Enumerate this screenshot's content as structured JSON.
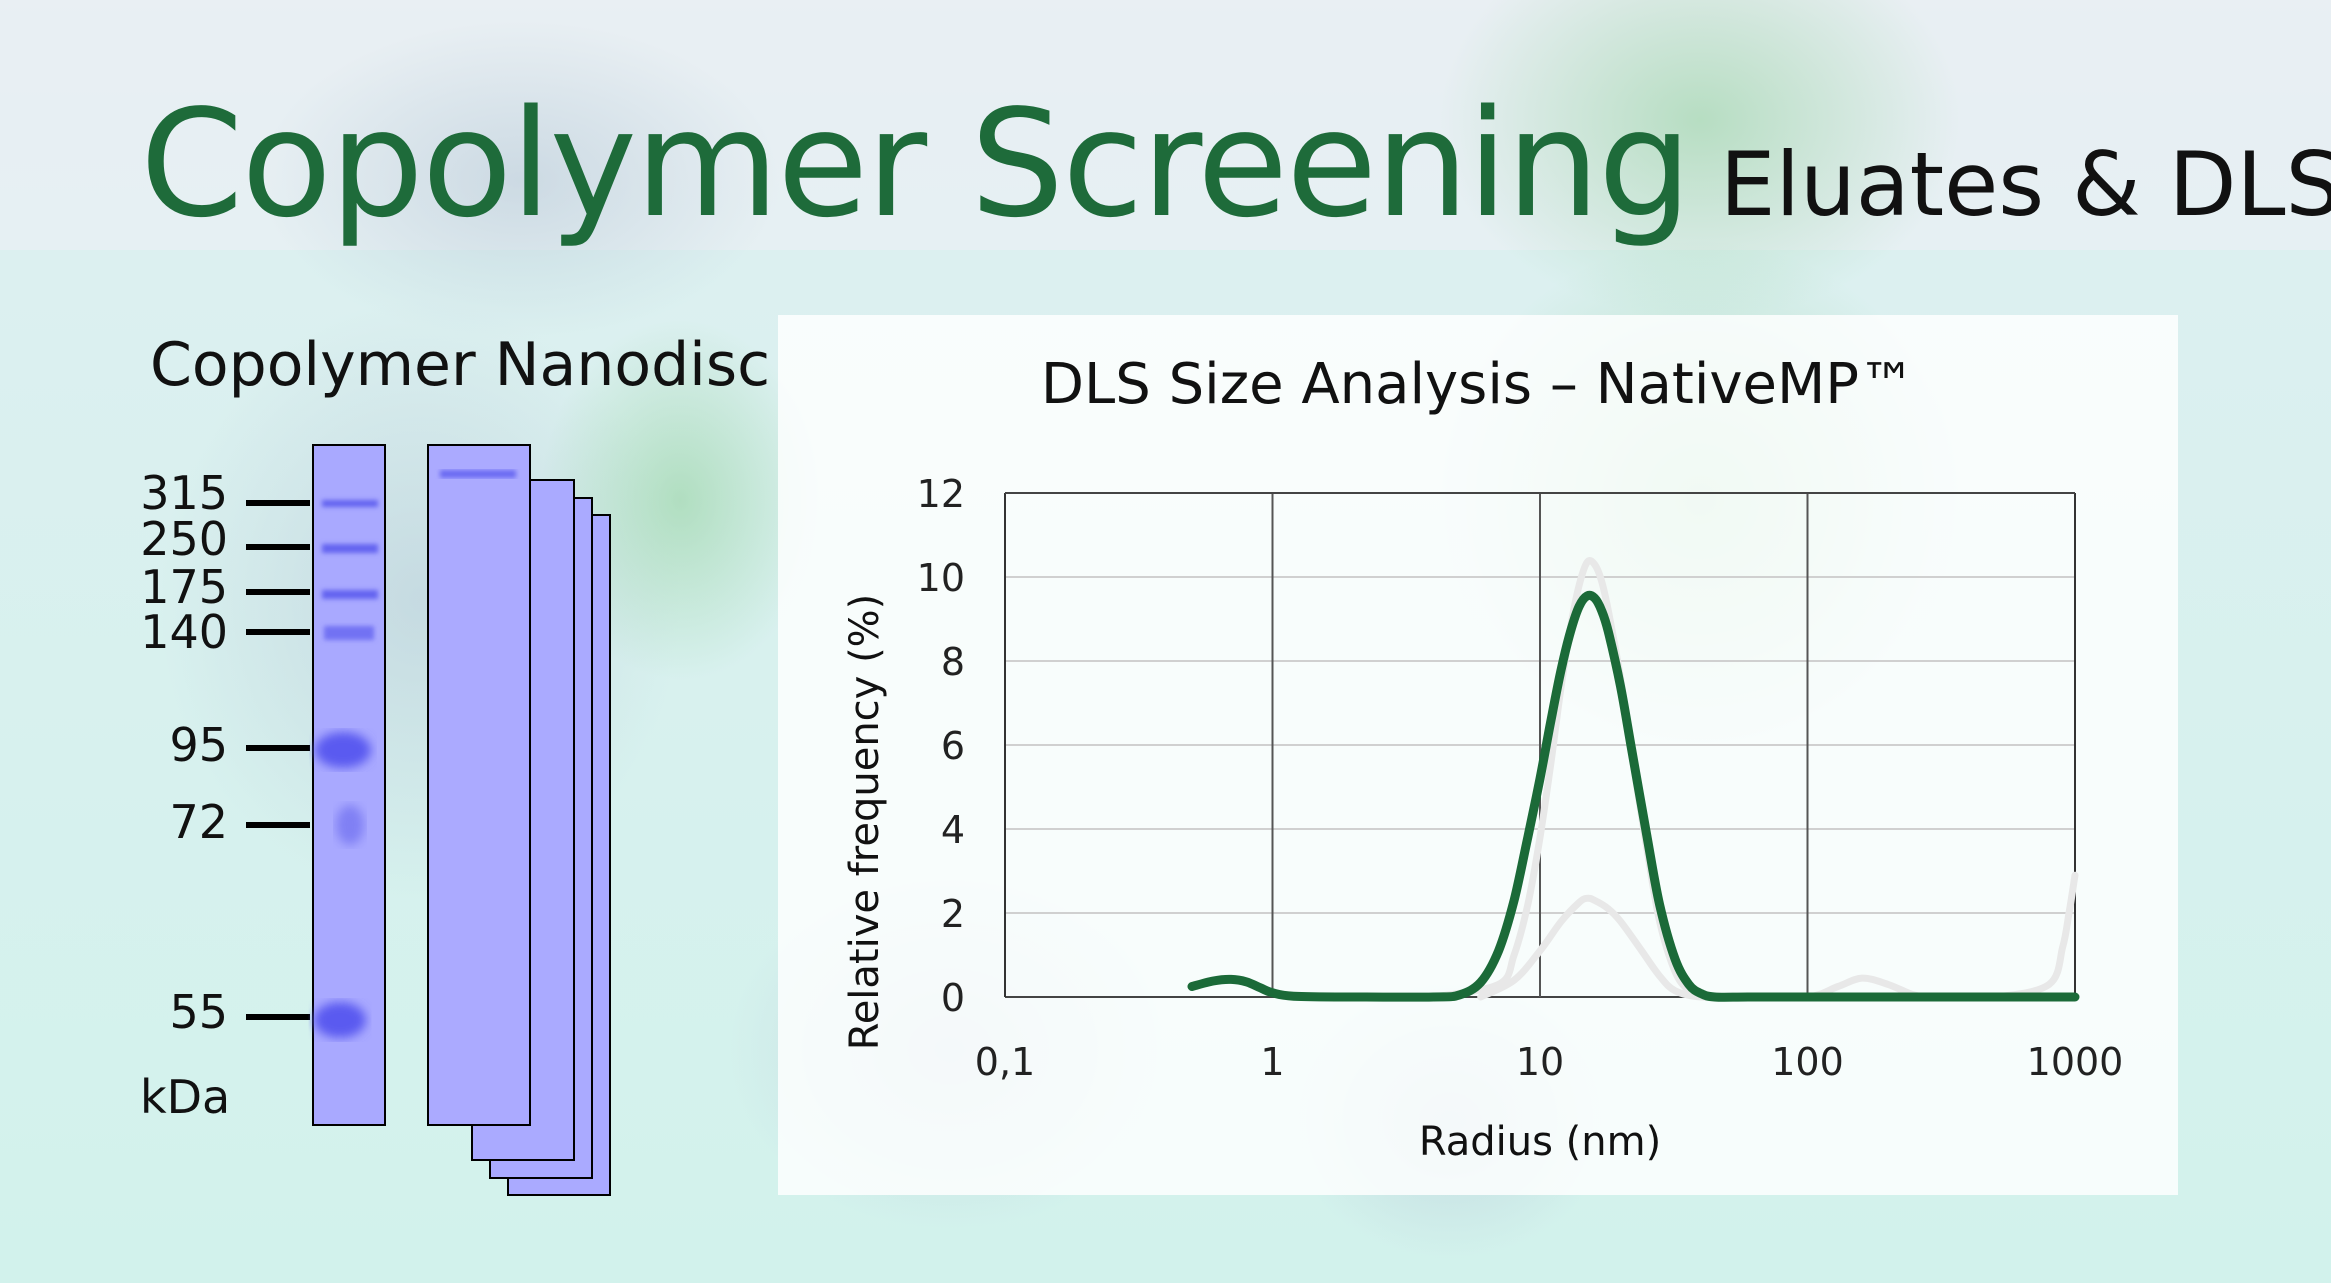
{
  "header": {
    "title": "Copolymer Screening",
    "subtitle": "Eluates & DLS"
  },
  "gel": {
    "title": "Copolymer Nanodisc",
    "unit": "kDa",
    "markers": [
      "315",
      "250",
      "175",
      "140",
      "95",
      "72",
      "55"
    ]
  },
  "colors": {
    "title_green": "#1e6b3a",
    "main_series": "#1b6a38",
    "background_series": "#e8e8e8",
    "gel_lane": "#a8a8ff"
  },
  "chart_data": {
    "type": "line",
    "title": "DLS Size Analysis – NativeMP™",
    "xlabel": "Radius (nm)",
    "ylabel": "Relative frequency (%)",
    "x_scale": "log",
    "xlim": [
      0.1,
      1000
    ],
    "ylim": [
      0,
      12
    ],
    "x_ticks": [
      "0,1",
      "1",
      "10",
      "100",
      "1000"
    ],
    "y_ticks": [
      "0",
      "2",
      "4",
      "6",
      "8",
      "10",
      "12"
    ],
    "grid": true,
    "series": [
      {
        "role": "highlighted",
        "color": "#1b6a38",
        "x": [
          0.5,
          0.6,
          0.7,
          0.8,
          0.9,
          1.0,
          1.2,
          2,
          4,
          5,
          6,
          7,
          8,
          9,
          10,
          11,
          12,
          13,
          14,
          15,
          16,
          17,
          18,
          20,
          22,
          25,
          28,
          32,
          36,
          40,
          45,
          60,
          100,
          1000
        ],
        "y": [
          0.25,
          0.38,
          0.42,
          0.36,
          0.22,
          0.1,
          0.02,
          0,
          0,
          0.05,
          0.35,
          1.1,
          2.3,
          3.8,
          5.2,
          6.6,
          7.8,
          8.7,
          9.3,
          9.55,
          9.5,
          9.2,
          8.7,
          7.4,
          5.9,
          3.9,
          2.2,
          0.9,
          0.3,
          0.08,
          0,
          0,
          0,
          0
        ]
      },
      {
        "role": "background",
        "color": "#e8e8e8",
        "x": [
          4,
          7,
          8,
          9,
          10,
          11,
          12,
          13,
          14,
          15,
          16,
          17,
          18,
          20,
          22,
          25,
          28,
          32,
          36,
          40,
          50,
          100,
          1000
        ],
        "y": [
          0,
          0.3,
          1.0,
          2.2,
          3.8,
          5.6,
          7.4,
          8.8,
          9.8,
          10.35,
          10.3,
          9.9,
          9.2,
          7.6,
          5.8,
          3.6,
          1.8,
          0.6,
          0.15,
          0.02,
          0,
          0,
          0
        ]
      },
      {
        "role": "background",
        "color": "#e8e8e8",
        "x": [
          6,
          8,
          10,
          12,
          14,
          15,
          16,
          18,
          20,
          24,
          28,
          32,
          40,
          60,
          100,
          130,
          160,
          200,
          250,
          300,
          500,
          800,
          900,
          950,
          1000
        ],
        "y": [
          0,
          0.4,
          1.1,
          1.8,
          2.25,
          2.35,
          2.3,
          2.1,
          1.8,
          1.1,
          0.5,
          0.15,
          0,
          0,
          0,
          0.25,
          0.45,
          0.3,
          0.05,
          0,
          0,
          0.3,
          1.2,
          2.0,
          2.9
        ]
      }
    ]
  }
}
